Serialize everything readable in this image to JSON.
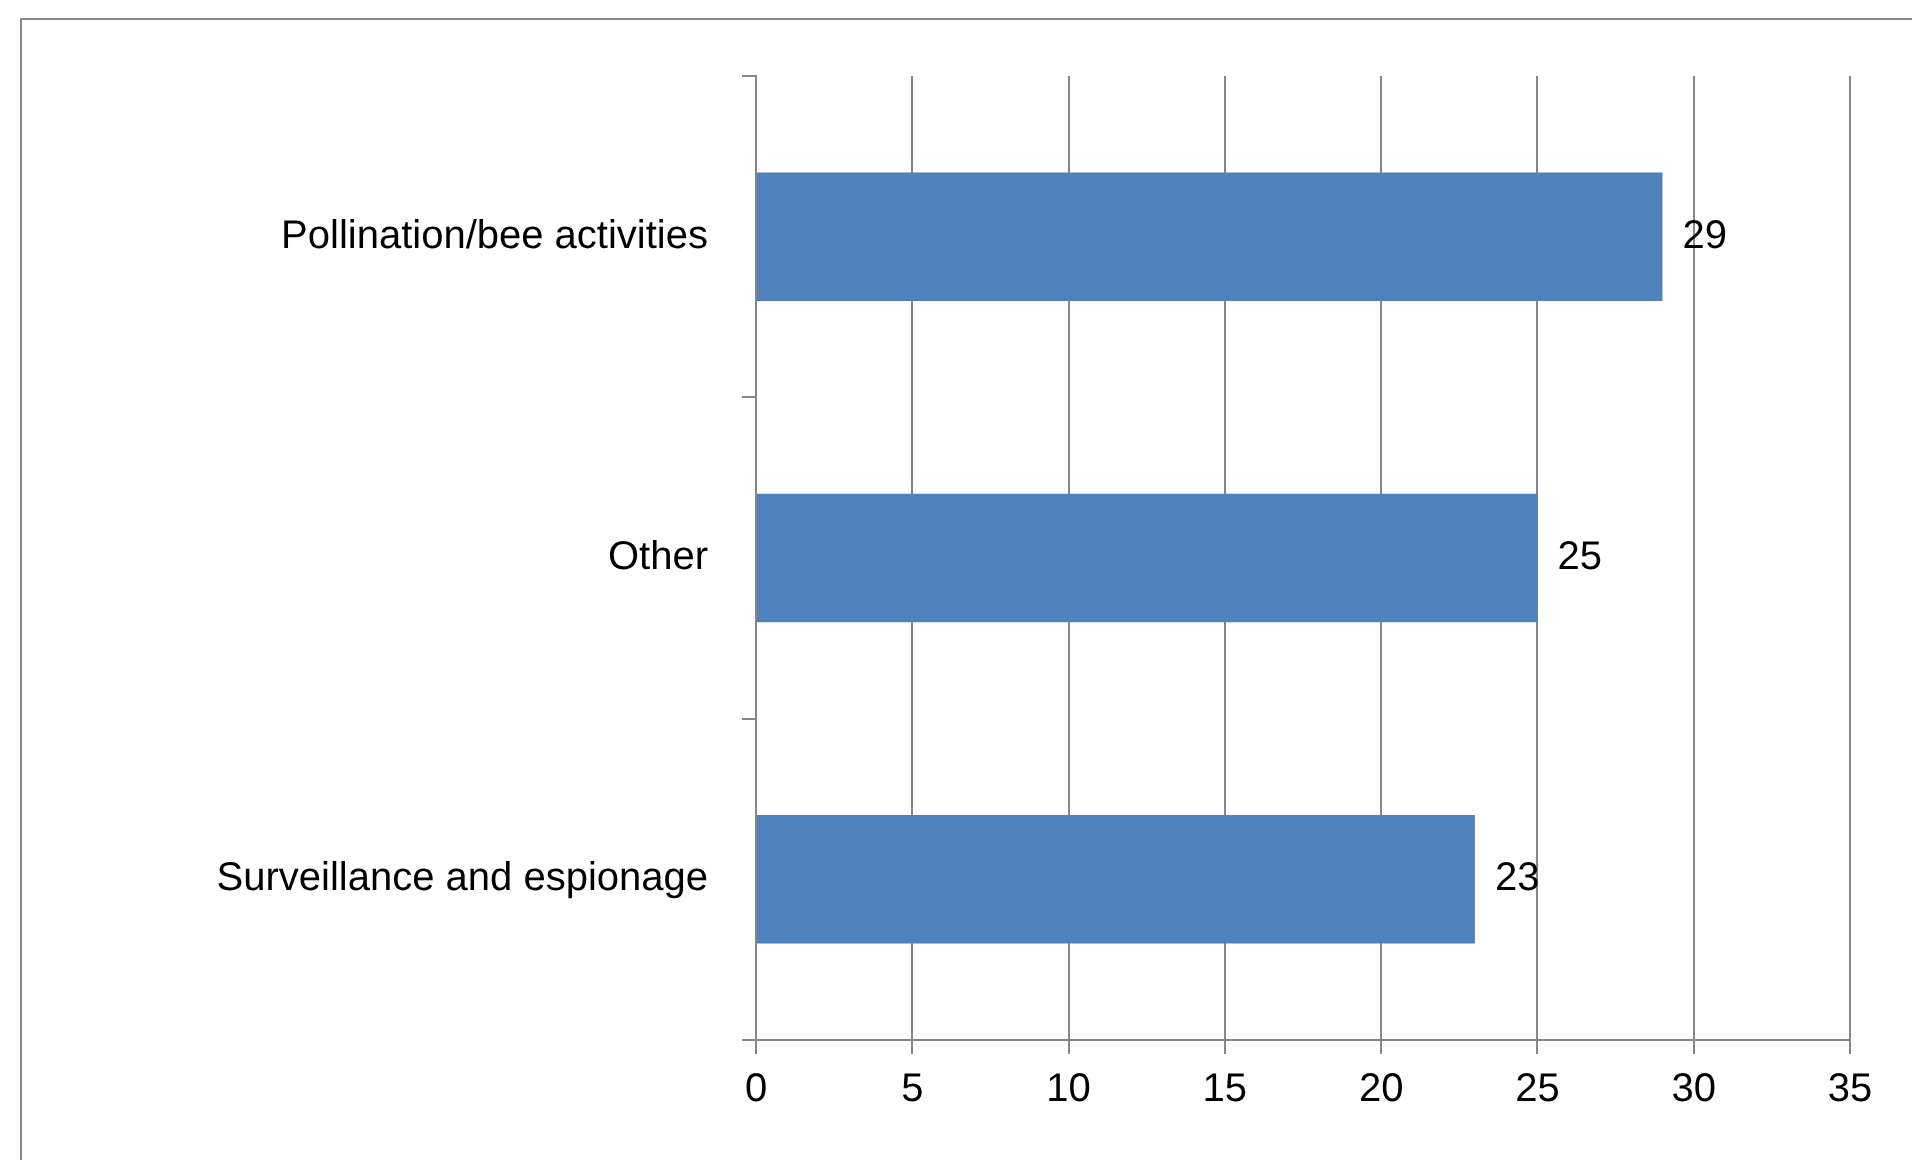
{
  "chart_data": {
    "type": "bar",
    "orientation": "horizontal",
    "categories": [
      "Pollination/bee activities",
      "Other",
      "Surveillance and espionage"
    ],
    "values": [
      29,
      25,
      23
    ],
    "color": "#4f81bd",
    "xlim": [
      0,
      35
    ],
    "xticks": [
      0,
      5,
      10,
      15,
      20,
      25,
      30,
      35
    ],
    "grid": "x",
    "data_labels": true
  }
}
